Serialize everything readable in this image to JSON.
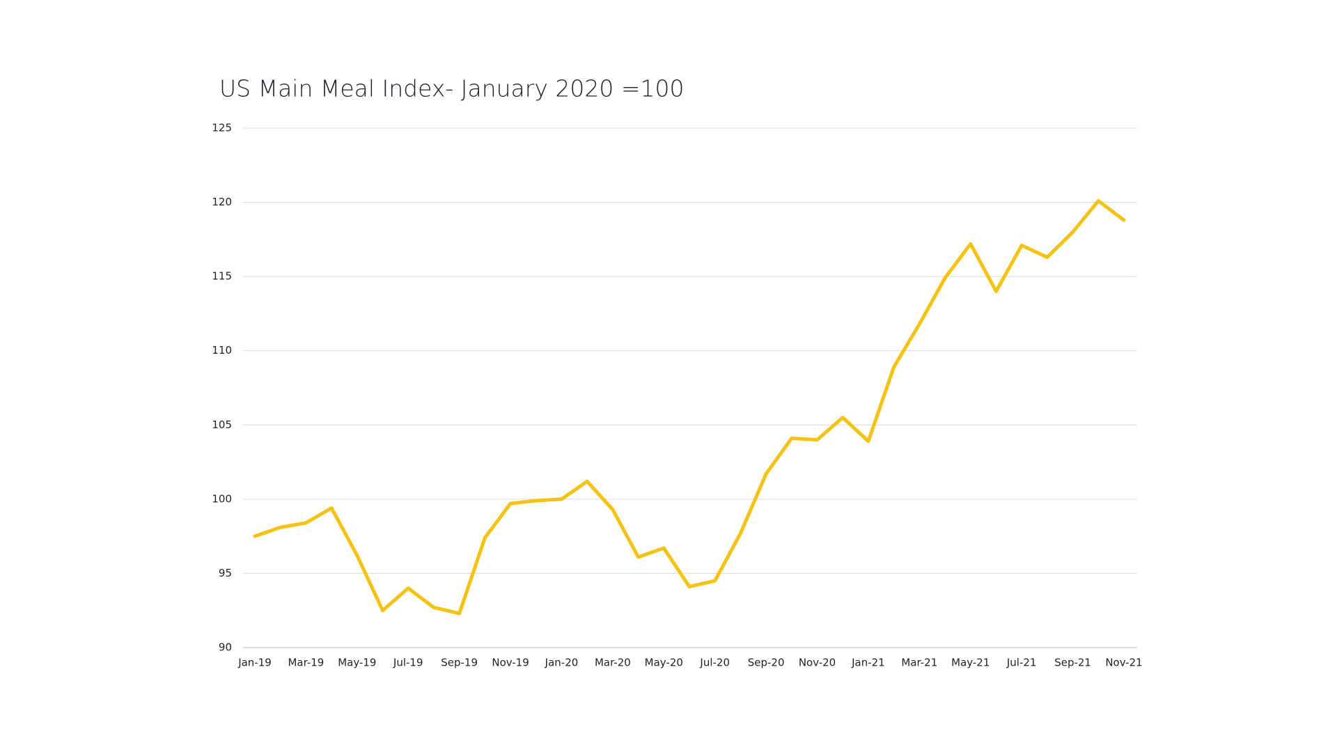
{
  "chart_data": {
    "type": "line",
    "title": "US Main Meal Index- January 2020 =100",
    "categories": [
      "Jan-19",
      null,
      "Mar-19",
      null,
      "May-19",
      null,
      "Jul-19",
      null,
      "Sep-19",
      null,
      "Nov-19",
      null,
      "Jan-20",
      null,
      "Mar-20",
      null,
      "May-20",
      null,
      "Jul-20",
      null,
      "Sep-20",
      null,
      "Nov-20",
      null,
      "Jan-21",
      null,
      "Mar-21",
      null,
      "May-21",
      null,
      "Jul-21",
      null,
      "Sep-21",
      null,
      "Nov-21"
    ],
    "values": [
      97.5,
      98.1,
      98.4,
      99.4,
      96.2,
      92.5,
      94.0,
      92.7,
      92.3,
      97.4,
      99.7,
      99.9,
      100.0,
      101.2,
      99.3,
      96.1,
      96.7,
      94.1,
      94.5,
      97.7,
      101.7,
      104.1,
      104.0,
      105.5,
      103.9,
      108.9,
      111.8,
      114.9,
      117.2,
      114.0,
      117.1,
      116.3,
      118.0,
      120.1,
      118.8
    ],
    "color": "#f5c211",
    "ylim": [
      90,
      125
    ],
    "yticks": [
      90,
      95,
      100,
      105,
      110,
      115,
      120,
      125
    ],
    "grid": true
  }
}
